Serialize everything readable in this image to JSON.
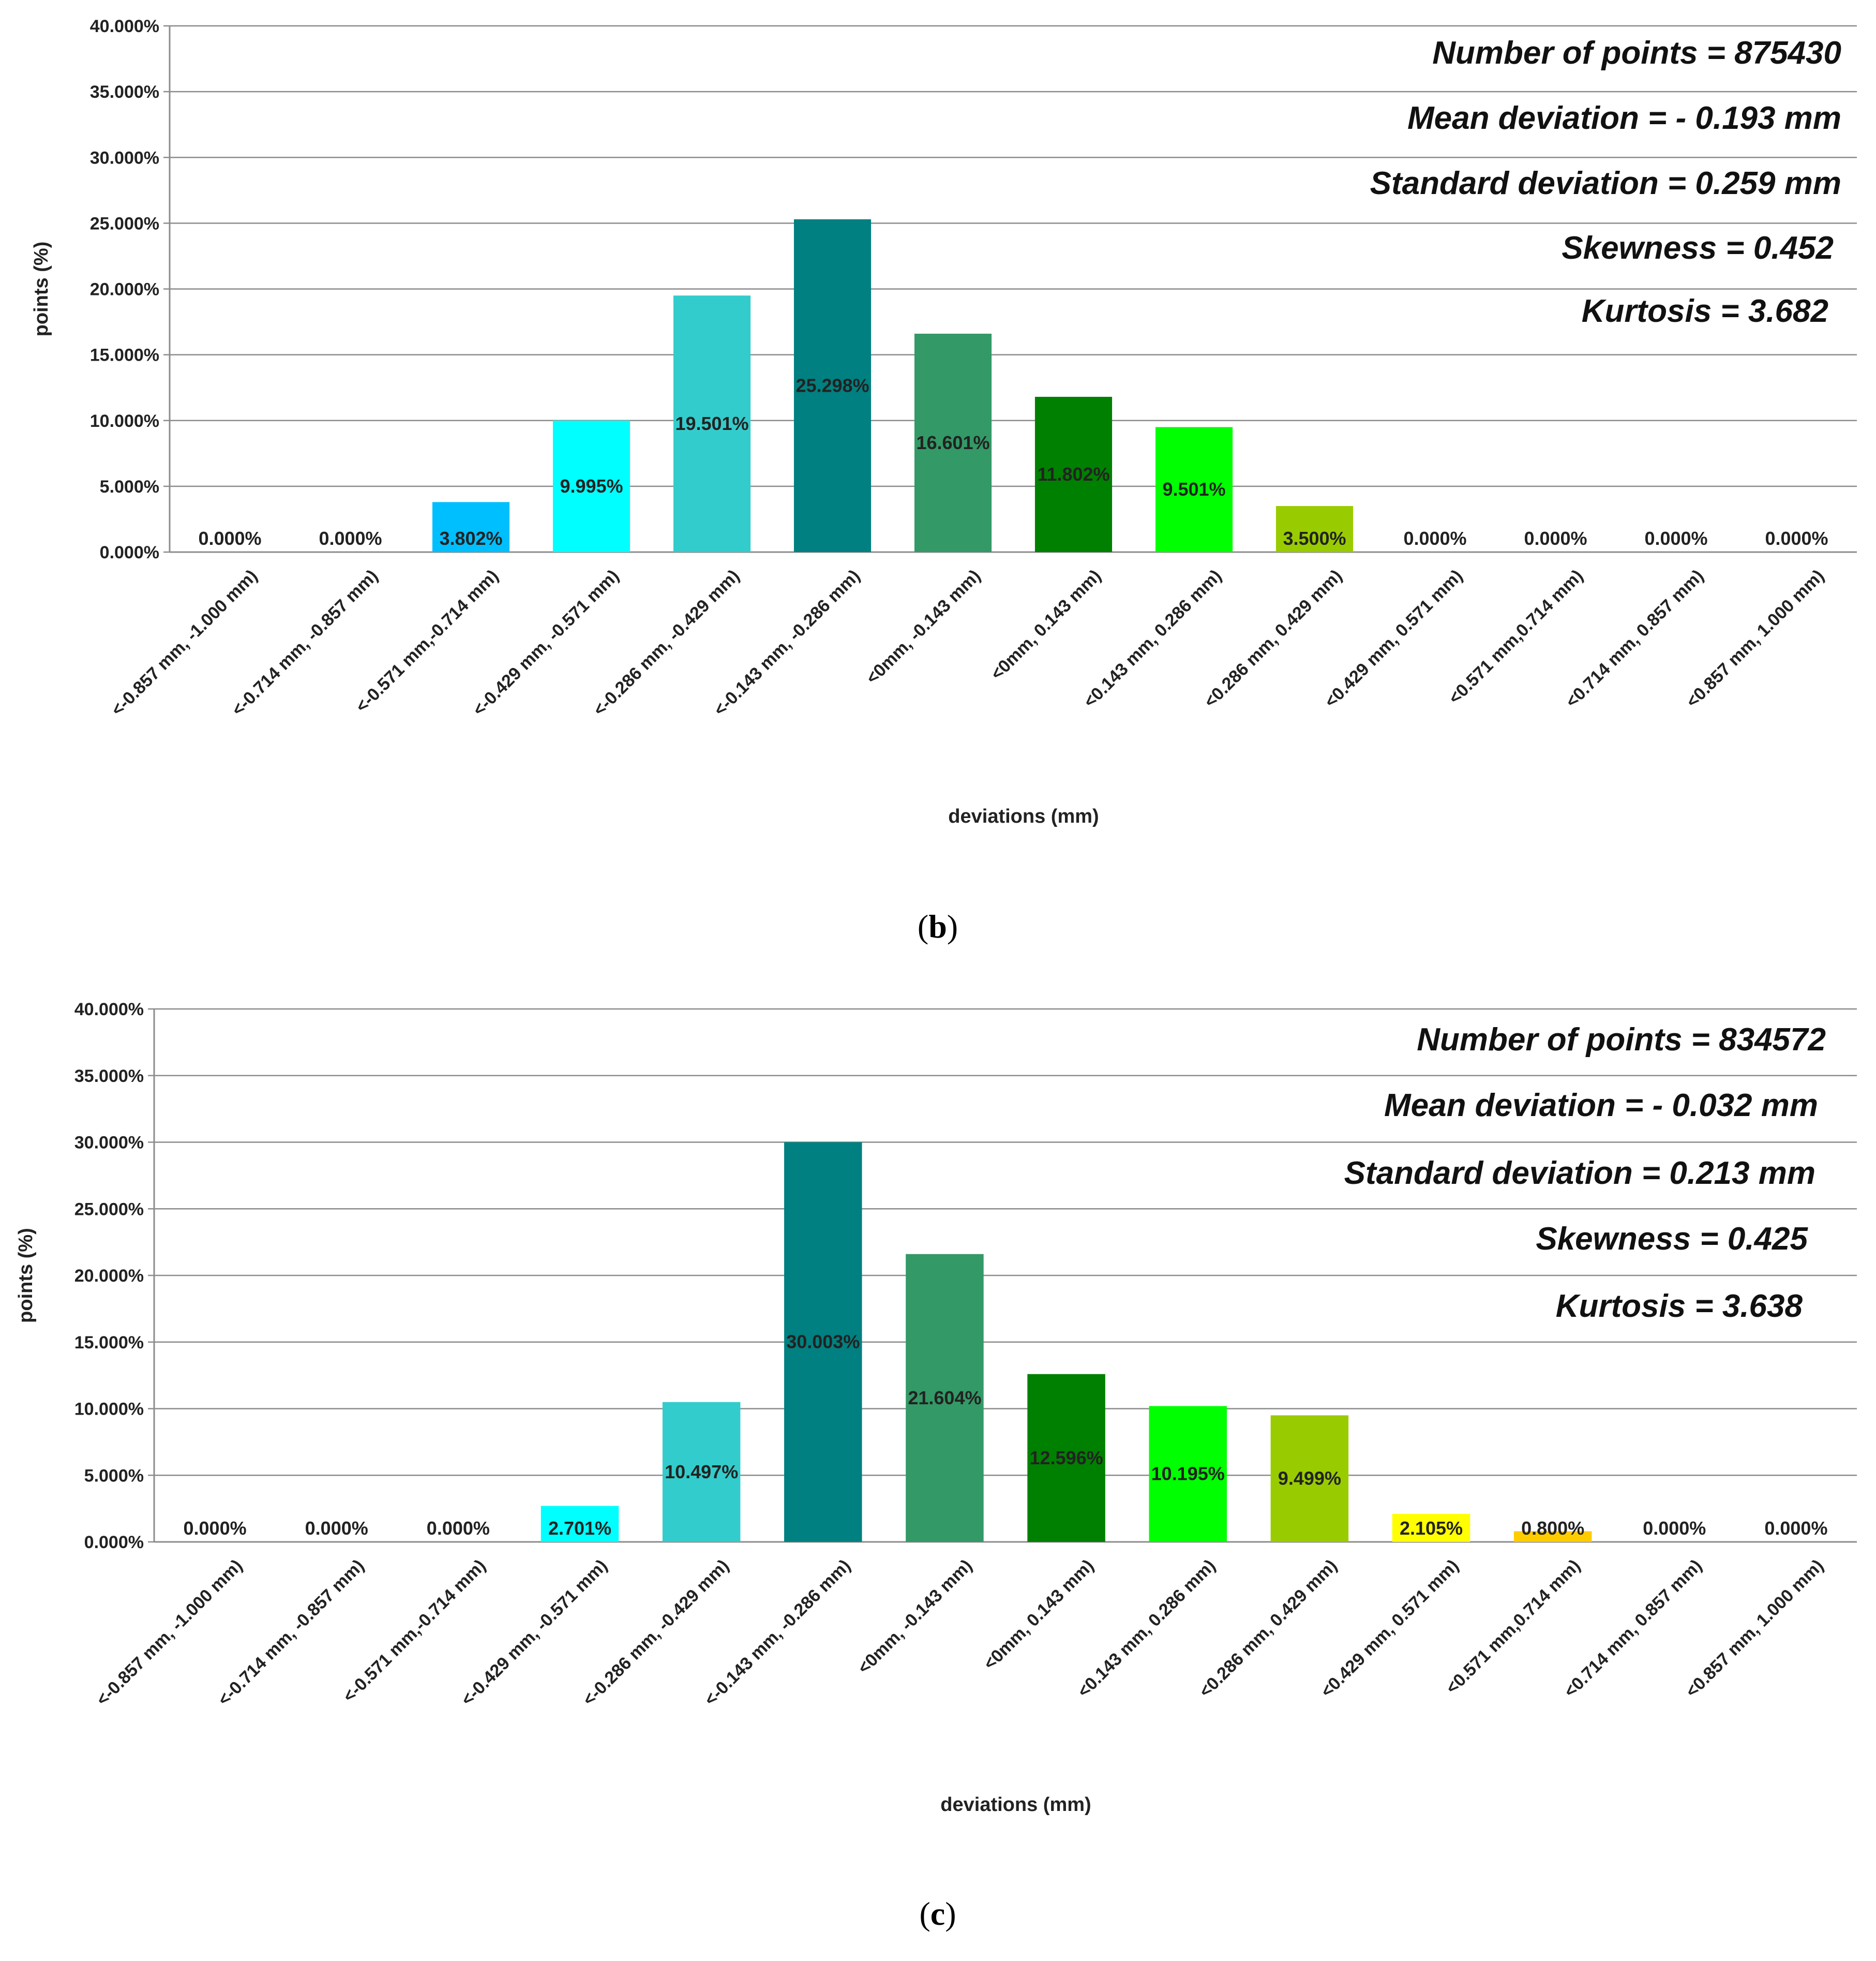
{
  "chart_data": [
    {
      "type": "bar",
      "panel": "b",
      "caption": {
        "open": "(",
        "letter": "b",
        "close": ")"
      },
      "xlabel": "deviations (mm)",
      "ylabel": "points (%)",
      "ylim": [
        0,
        40
      ],
      "yticks": [
        "0.000%",
        "5.000%",
        "10.000%",
        "15.000%",
        "20.000%",
        "25.000%",
        "30.000%",
        "35.000%",
        "40.000%"
      ],
      "grid": true,
      "categories": [
        "<-0.857 mm, -1.000 mm)",
        "<-0.714 mm, -0.857 mm)",
        "<-0.571 mm,-0.714 mm)",
        "<-0.429 mm, -0.571 mm)",
        "<-0.286 mm, -0.429 mm)",
        "<-0.143 mm, -0.286 mm)",
        "<0mm, -0.143 mm)",
        "<0mm, 0.143 mm)",
        "<0.143 mm, 0.286 mm)",
        "<0.286 mm, 0.429 mm)",
        "<0.429 mm, 0.571 mm)",
        "<0.571 mm,0.714 mm)",
        "<0.714 mm, 0.857 mm)",
        "<0.857 mm, 1.000 mm)"
      ],
      "values": [
        0.0,
        0.0,
        3.802,
        9.995,
        19.501,
        25.298,
        16.601,
        11.802,
        9.501,
        3.5,
        0.0,
        0.0,
        0.0,
        0.0
      ],
      "labels": [
        "0.000%",
        "0.000%",
        "3.802%",
        "9.995%",
        "19.501%",
        "25.298%",
        "16.601%",
        "11.802%",
        "9.501%",
        "3.500%",
        "0.000%",
        "0.000%",
        "0.000%",
        "0.000%"
      ],
      "colors": [
        "#00BFFF",
        "#00BFFF",
        "#00BFFF",
        "#00FFFF",
        "#33CCCC",
        "#008080",
        "#339966",
        "#008000",
        "#00FF00",
        "#99CC00",
        "#FFFF00",
        "#FFCC00",
        "#FF9900",
        "#FF6600"
      ],
      "stats": [
        "Number of points = 875430",
        "Mean deviation = - 0.193 mm",
        "Standard deviation = 0.259 mm",
        "Skewness = 0.452",
        "Kurtosis = 3.682"
      ]
    },
    {
      "type": "bar",
      "panel": "c",
      "caption": {
        "open": "(",
        "letter": "c",
        "close": ")"
      },
      "xlabel": "deviations (mm)",
      "ylabel": "points (%)",
      "ylim": [
        0,
        40
      ],
      "yticks": [
        "0.000%",
        "5.000%",
        "10.000%",
        "15.000%",
        "20.000%",
        "25.000%",
        "30.000%",
        "35.000%",
        "40.000%"
      ],
      "grid": true,
      "categories": [
        "<-0.857 mm, -1.000 mm)",
        "<-0.714 mm, -0.857 mm)",
        "<-0.571 mm,-0.714 mm)",
        "<-0.429 mm, -0.571 mm)",
        "<-0.286 mm, -0.429 mm)",
        "<-0.143 mm, -0.286 mm)",
        "<0mm, -0.143 mm)",
        "<0mm, 0.143 mm)",
        "<0.143 mm, 0.286 mm)",
        "<0.286 mm, 0.429 mm)",
        "<0.429 mm, 0.571 mm)",
        "<0.571 mm,0.714 mm)",
        "<0.714 mm, 0.857 mm)",
        "<0.857 mm, 1.000 mm)"
      ],
      "values": [
        0.0,
        0.0,
        0.0,
        2.701,
        10.497,
        30.003,
        21.604,
        12.596,
        10.195,
        9.499,
        2.105,
        0.8,
        0.0,
        0.0
      ],
      "labels": [
        "0.000%",
        "0.000%",
        "0.000%",
        "2.701%",
        "10.497%",
        "30.003%",
        "21.604%",
        "12.596%",
        "10.195%",
        "9.499%",
        "2.105%",
        "0.800%",
        "0.000%",
        "0.000%"
      ],
      "colors": [
        "#00BFFF",
        "#00BFFF",
        "#00BFFF",
        "#00FFFF",
        "#33CCCC",
        "#008080",
        "#339966",
        "#008000",
        "#00FF00",
        "#99CC00",
        "#FFFF00",
        "#FFCC00",
        "#FF9900",
        "#FF6600"
      ],
      "stats": [
        "Number of points = 834572",
        "Mean deviation = - 0.032 mm",
        "Standard deviation = 0.213 mm",
        "Skewness = 0.425",
        "Kurtosis = 3.638"
      ]
    }
  ]
}
